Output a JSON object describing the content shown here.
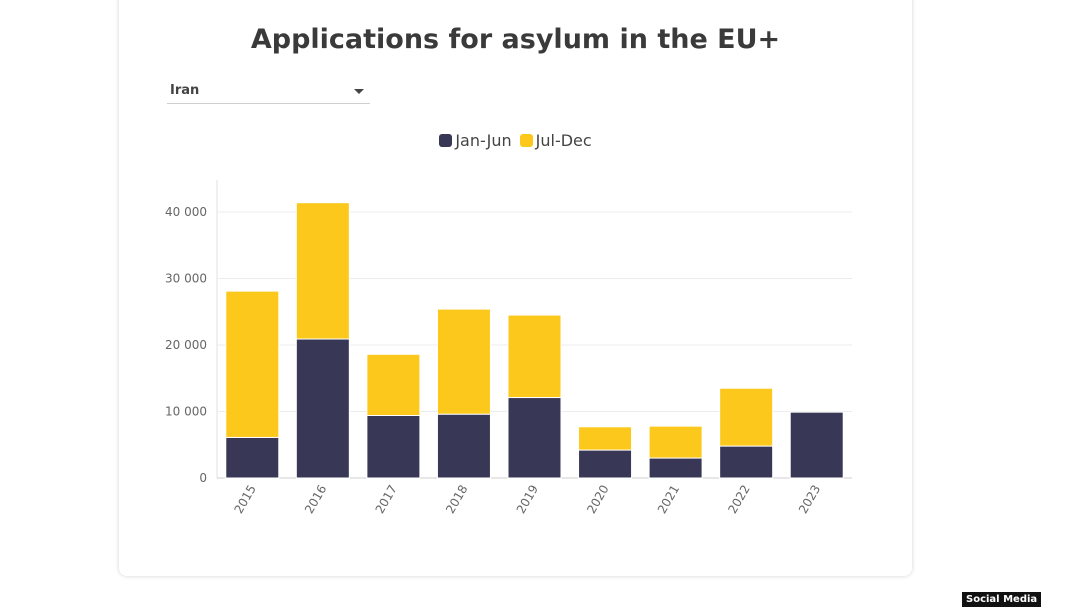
{
  "dropdown": {
    "selected": "Iran"
  },
  "badge": "Social Media",
  "colors": {
    "jan_jun": "#383856",
    "jul_dec": "#fcc81b",
    "grid": "#ececec",
    "tick": "#666666"
  },
  "chart_data": {
    "type": "bar",
    "stacked": true,
    "title": "Applications for asylum in the EU+",
    "categories": [
      "2015",
      "2016",
      "2017",
      "2018",
      "2019",
      "2020",
      "2021",
      "2022",
      "2023"
    ],
    "series": [
      {
        "name": "Jan-Jun",
        "values": [
          6100,
          20900,
          9400,
          9600,
          12100,
          4200,
          3000,
          4800,
          9900
        ]
      },
      {
        "name": "Jul-Dec",
        "values": [
          22000,
          20500,
          9200,
          15800,
          12400,
          3500,
          4800,
          8700,
          0
        ]
      }
    ],
    "yticks": [
      0,
      10000,
      20000,
      30000,
      40000
    ],
    "ytick_labels": [
      "0",
      "10 000",
      "20 000",
      "30 000",
      "40 000"
    ],
    "ylim": [
      0,
      40000
    ],
    "legend_position": "top-center",
    "grid": true
  }
}
